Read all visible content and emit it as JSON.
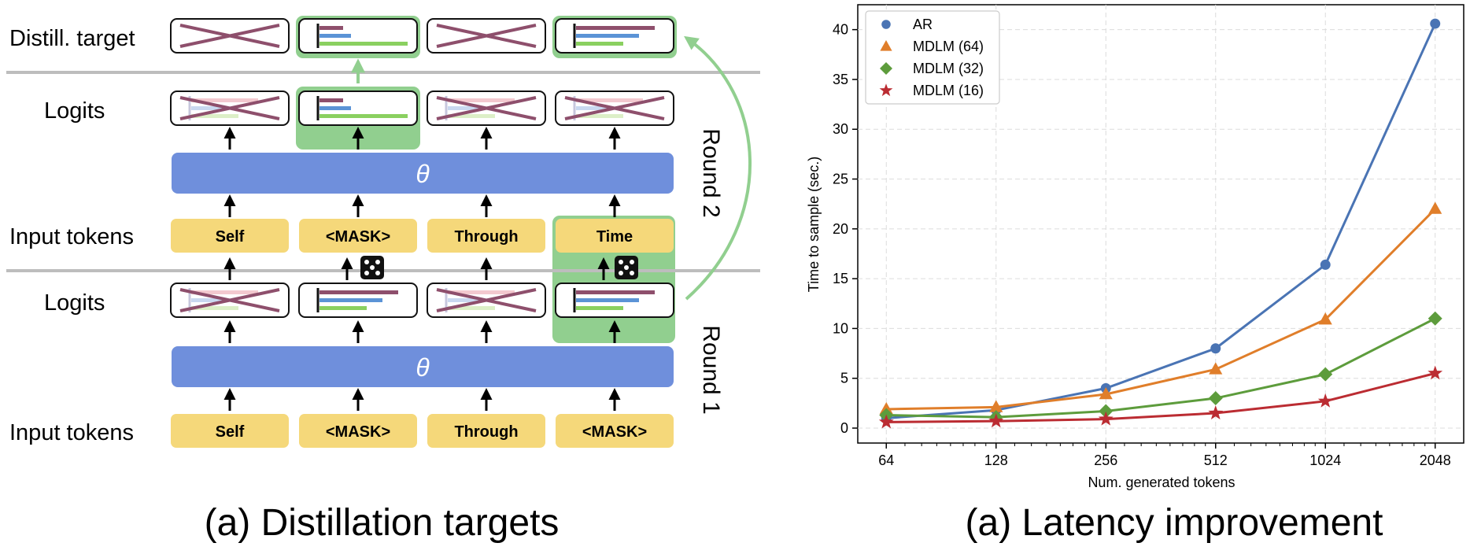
{
  "left_panel": {
    "caption": "(a) Distillation targets",
    "row_labels": {
      "distill_target": "Distill. target",
      "logits_round2": "Logits",
      "input_round2": "Input tokens",
      "logits_round1": "Logits",
      "input_round1": "Input tokens"
    },
    "round_labels": {
      "round1": "Round 1",
      "round2": "Round 2"
    },
    "theta_symbol": "θ",
    "tokens_round2": [
      "Self",
      "<MASK>",
      "Through",
      "Time"
    ],
    "tokens_round1": [
      "Self",
      "<MASK>",
      "Through",
      "<MASK>"
    ],
    "colors": {
      "theta_bar": "#6f8fdc",
      "token_fill": "#f5d87a",
      "highlight": "#91cf8f",
      "cross": "#8e4f6c",
      "bar_red": "#8e4f6c",
      "bar_blue": "#5b93d6",
      "bar_green": "#8ad060",
      "separator": "#bdbdbd"
    }
  },
  "right_panel": {
    "caption": "(a) Latency improvement"
  },
  "chart_data": {
    "type": "line",
    "x": [
      64,
      128,
      256,
      512,
      1024,
      2048
    ],
    "x_scale": "log2",
    "x_ticks": [
      "64",
      "128",
      "256",
      "512",
      "1024",
      "2048"
    ],
    "y_ticks": [
      "0",
      "5",
      "10",
      "15",
      "20",
      "25",
      "30",
      "35",
      "40"
    ],
    "ylim": [
      -1.5,
      42.5
    ],
    "xlabel": "Num. generated tokens",
    "ylabel": "Time to sample (sec.)",
    "grid": true,
    "legend_position": "top-left",
    "series": [
      {
        "name": "AR",
        "marker": "circle",
        "color": "#4a74b4",
        "values": [
          1.0,
          1.8,
          4.0,
          8.0,
          16.4,
          40.6
        ]
      },
      {
        "name": "MDLM (64)",
        "marker": "triangle",
        "color": "#e07e2a",
        "values": [
          1.9,
          2.1,
          3.4,
          5.9,
          10.9,
          22.0
        ]
      },
      {
        "name": "MDLM (32)",
        "marker": "diamond",
        "color": "#5d9c3c",
        "values": [
          1.3,
          1.1,
          1.7,
          3.0,
          5.4,
          11.0
        ]
      },
      {
        "name": "MDLM (16)",
        "marker": "star",
        "color": "#bb2c32",
        "values": [
          0.6,
          0.7,
          0.9,
          1.5,
          2.7,
          5.5
        ]
      }
    ]
  }
}
